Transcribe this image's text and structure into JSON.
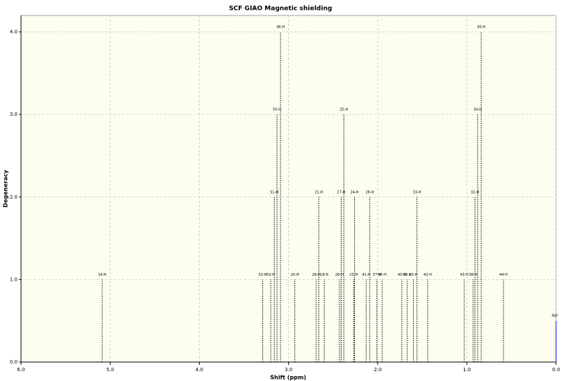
{
  "chart_data": {
    "type": "stem",
    "title": "SCF GIAO Magnetic shielding",
    "x_label": "Shift (ppm)",
    "y_label": "Degeneracy",
    "labels": [
      "14-H",
      "52-H",
      "53-H",
      "51-H",
      "50-H",
      "36-H",
      "20-H",
      "29-H",
      "21-H",
      "18-H",
      "26-H",
      "27-H",
      "25-H",
      "23-H",
      "24-H",
      "41-H",
      "28-H",
      "37-H",
      "45-H",
      "40-H",
      "39-H",
      "22-H",
      "33-H",
      "42-H",
      "43-H",
      "38-H",
      "32-H",
      "34-H",
      "30-H",
      "44-H"
    ],
    "x": [
      5.09,
      3.29,
      3.2,
      3.16,
      3.13,
      3.09,
      2.93,
      2.69,
      2.66,
      2.6,
      2.43,
      2.41,
      2.38,
      2.27,
      2.26,
      2.13,
      2.09,
      2.01,
      1.95,
      1.73,
      1.67,
      1.6,
      1.56,
      1.44,
      1.03,
      0.93,
      0.91,
      0.88,
      0.84,
      0.59
    ],
    "values": [
      1,
      1,
      1,
      2,
      3,
      4,
      1,
      1,
      2,
      1,
      1,
      2,
      3,
      1,
      2,
      1,
      2,
      1,
      1,
      1,
      1,
      1,
      2,
      1,
      1,
      1,
      2,
      3,
      4,
      1
    ],
    "color": "#000000",
    "ref": {
      "label": "Ref",
      "x": 0,
      "value": 0.5,
      "color": "#0000ff"
    },
    "xlim": [
      6.0,
      0.0
    ],
    "ylim": [
      0,
      4.2
    ],
    "xticks": [
      {
        "value": 6,
        "label": "6.0"
      },
      {
        "value": 5,
        "label": "5.0"
      },
      {
        "value": 4,
        "label": "4.0"
      },
      {
        "value": 3,
        "label": "3.0"
      },
      {
        "value": 2,
        "label": "2.0"
      },
      {
        "value": 1,
        "label": "1.0"
      },
      {
        "value": 0,
        "label": "0.0"
      }
    ],
    "yticks": [
      {
        "value": 0,
        "label": "0.0"
      },
      {
        "value": 1,
        "label": "1.0"
      },
      {
        "value": 2,
        "label": "2.0"
      },
      {
        "value": 3,
        "label": "3.0"
      },
      {
        "value": 4,
        "label": "4.0"
      }
    ],
    "grid": true
  }
}
